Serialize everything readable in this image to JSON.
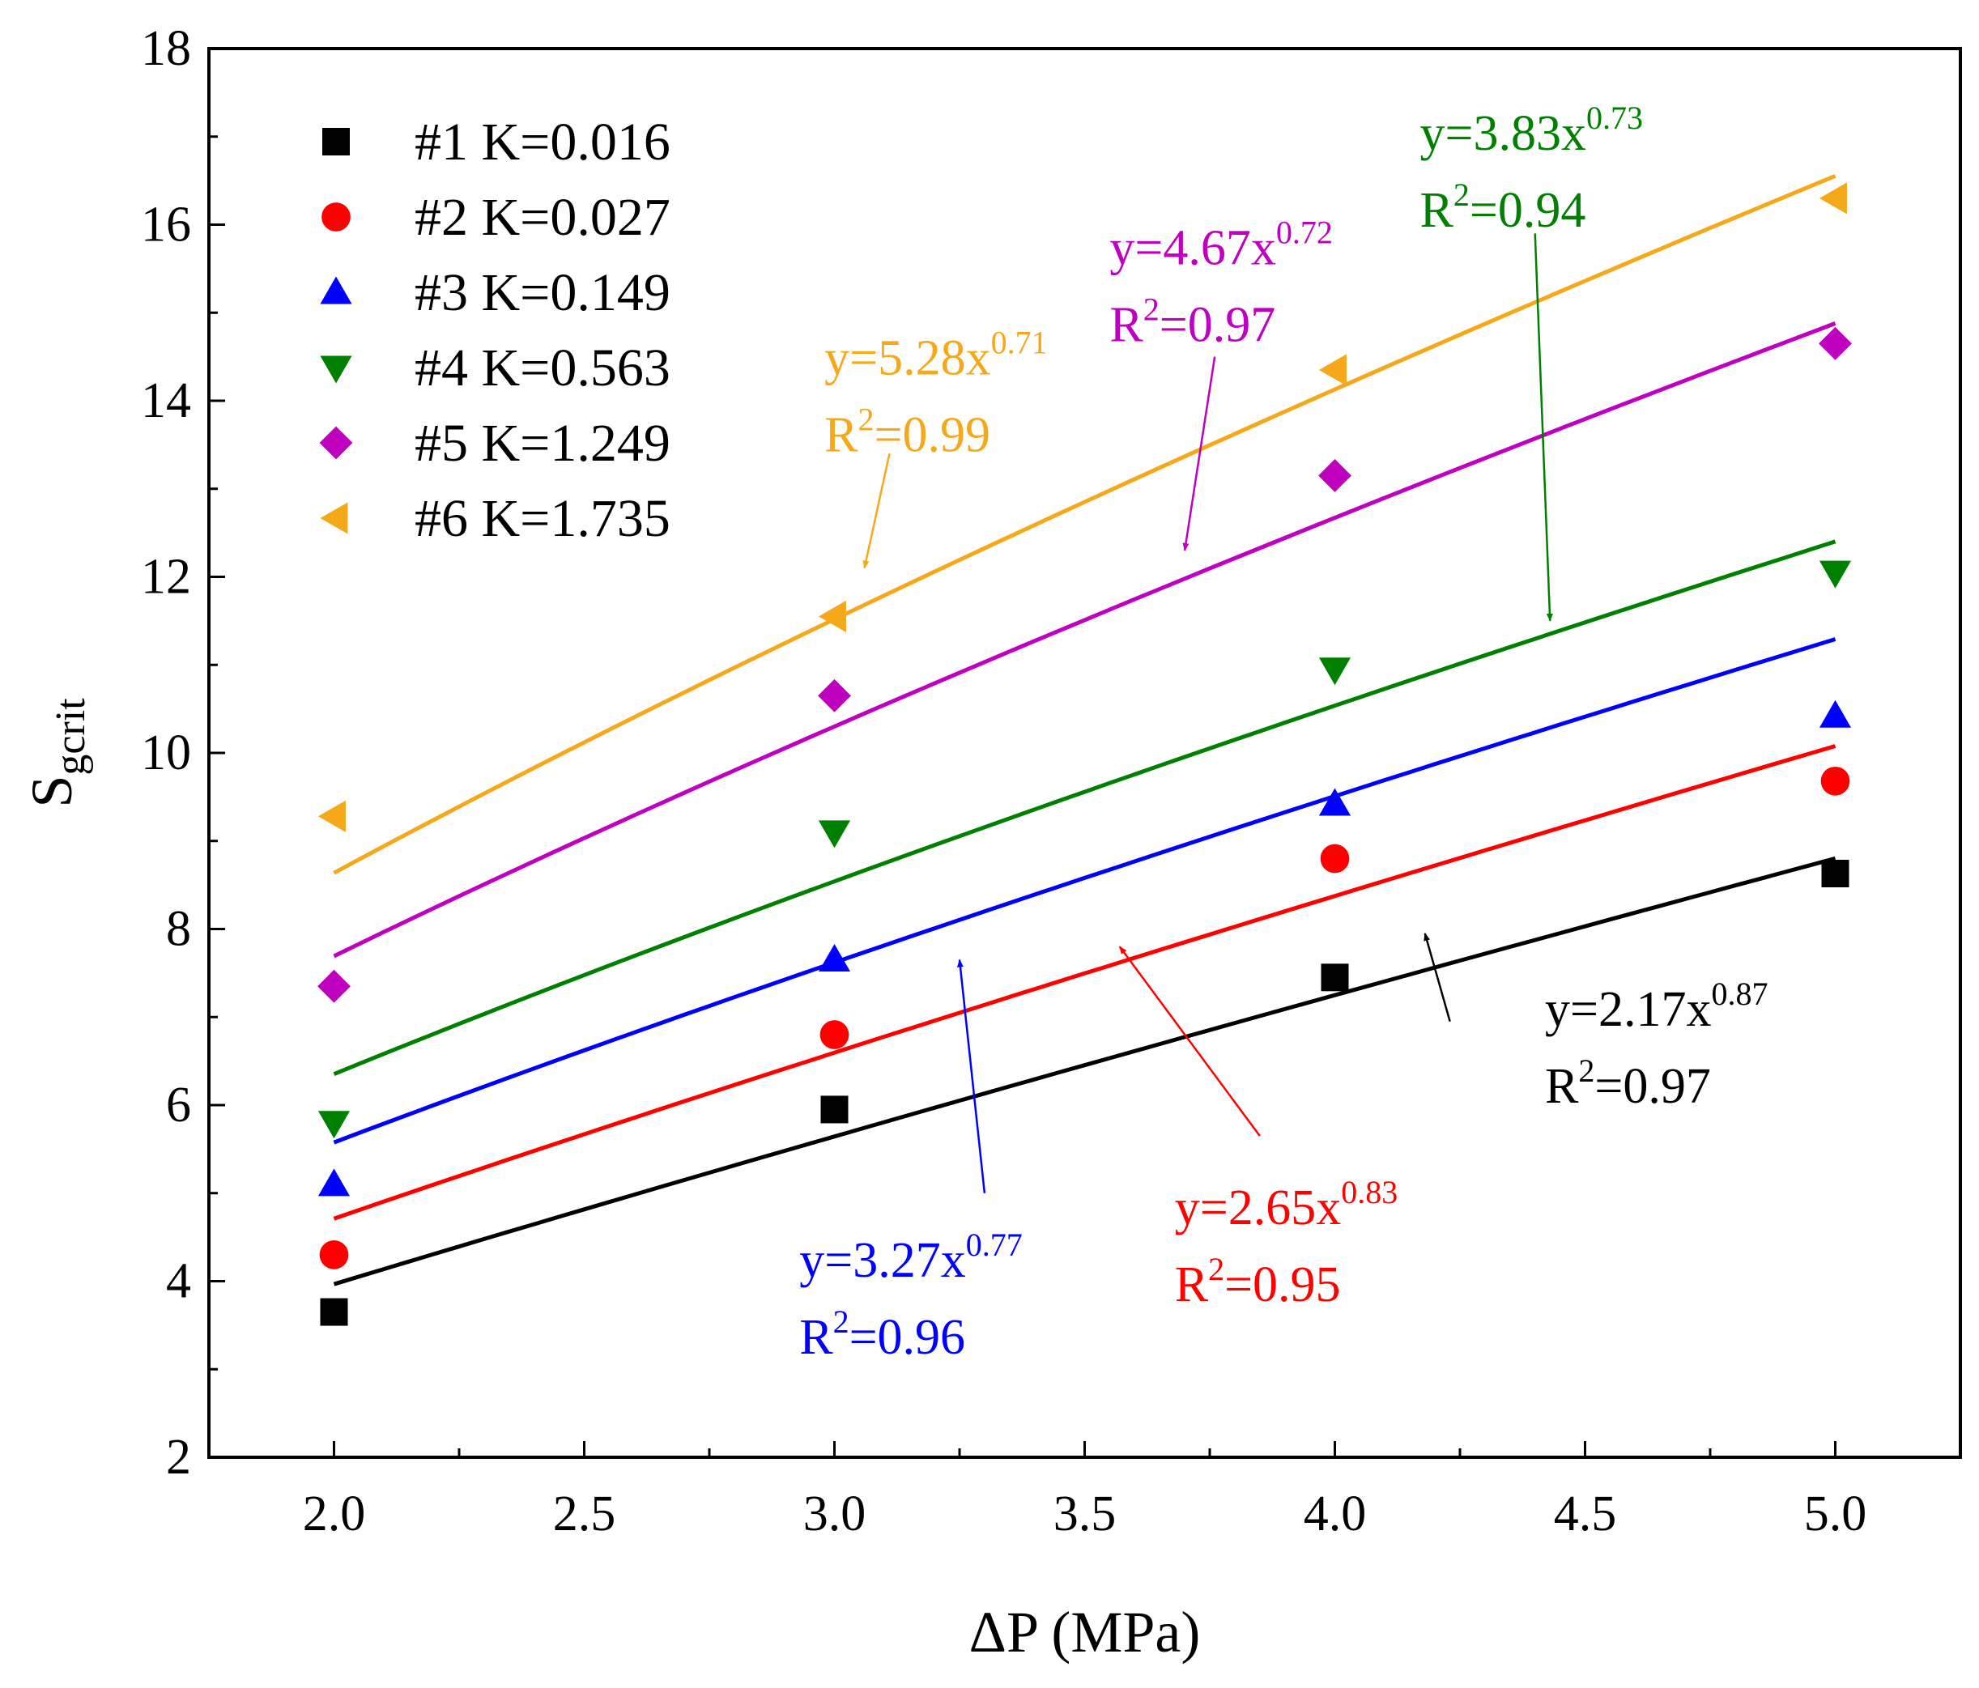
{
  "chart_data": {
    "type": "scatter",
    "title": "",
    "xlabel": {
      "prefix": "ΔP",
      "unit": "(MPa)"
    },
    "ylabel": {
      "main": "S",
      "sub": "gcrit"
    },
    "xlim": [
      1.75,
      5.25
    ],
    "ylim": [
      2,
      18
    ],
    "xticks": [
      2.0,
      2.5,
      3.0,
      3.5,
      4.0,
      4.5,
      5.0
    ],
    "xtick_labels": [
      "2.0",
      "2.5",
      "3.0",
      "3.5",
      "4.0",
      "4.5",
      "5.0"
    ],
    "yticks": [
      2,
      4,
      6,
      8,
      10,
      12,
      14,
      16,
      18
    ],
    "ytick_labels": [
      "2",
      "4",
      "6",
      "8",
      "10",
      "12",
      "14",
      "16",
      "18"
    ],
    "legend_position": "top-left",
    "series": [
      {
        "name": "#1 K=0.016",
        "color": "#000000",
        "marker": "square",
        "x": [
          2,
          3,
          4,
          5
        ],
        "y": [
          3.65,
          5.95,
          7.45,
          8.63
        ],
        "fit": {
          "a": 2.17,
          "b": 0.87,
          "x_range": [
            2.0,
            5.0
          ]
        },
        "annotation": {
          "eq_prefix": "y=2.17x",
          "eq_exp": "0.87",
          "r_prefix": "R",
          "r_exp": "2",
          "r_suffix": "=0.97",
          "text_at": [
            4.42,
            6.9
          ],
          "arrow_from": [
            4.23,
            6.95
          ],
          "arrow_to": [
            4.18,
            7.95
          ]
        }
      },
      {
        "name": "#2 K=0.027",
        "color": "#ff0000",
        "marker": "circle",
        "x": [
          2,
          3,
          4,
          5
        ],
        "y": [
          4.3,
          6.8,
          8.8,
          9.68
        ],
        "fit": {
          "a": 2.65,
          "b": 0.83,
          "x_range": [
            2.0,
            5.0
          ]
        },
        "annotation": {
          "eq_prefix": "y=2.65x",
          "eq_exp": "0.83",
          "r_prefix": "R",
          "r_exp": "2",
          "r_suffix": "=0.95",
          "text_at": [
            3.68,
            4.65
          ],
          "arrow_from": [
            3.85,
            5.65
          ],
          "arrow_to": [
            3.57,
            7.8
          ]
        }
      },
      {
        "name": "#3 K=0.149",
        "color": "#0000ff",
        "marker": "triangle-up",
        "x": [
          2,
          3,
          4,
          5
        ],
        "y": [
          5.1,
          7.65,
          9.42,
          10.42
        ],
        "fit": {
          "a": 3.27,
          "b": 0.77,
          "x_range": [
            2.0,
            5.0
          ]
        },
        "annotation": {
          "eq_prefix": "y=3.27x",
          "eq_exp": "0.77",
          "r_prefix": "R",
          "r_exp": "2",
          "r_suffix": "=0.96",
          "text_at": [
            2.93,
            4.05
          ],
          "arrow_from": [
            3.3,
            5.0
          ],
          "arrow_to": [
            3.25,
            7.65
          ]
        }
      },
      {
        "name": "#4 K=0.563",
        "color": "#008000",
        "marker": "triangle-down",
        "x": [
          2,
          3,
          4,
          5
        ],
        "y": [
          5.8,
          9.1,
          10.95,
          12.05
        ],
        "fit": {
          "a": 3.83,
          "b": 0.73,
          "x_range": [
            2.0,
            5.0
          ]
        },
        "annotation": {
          "eq_prefix": "y=3.83x",
          "eq_exp": "0.73",
          "r_prefix": "R",
          "r_exp": "2",
          "r_suffix": "=0.94",
          "text_at": [
            4.17,
            16.85
          ],
          "arrow_from": [
            4.4,
            15.9
          ],
          "arrow_to": [
            4.43,
            11.5
          ]
        }
      },
      {
        "name": "#5 K=1.249",
        "color": "#bf00bf",
        "marker": "diamond",
        "x": [
          2,
          3,
          4,
          5
        ],
        "y": [
          7.35,
          10.65,
          13.15,
          14.65
        ],
        "fit": {
          "a": 4.67,
          "b": 0.72,
          "x_range": [
            2.0,
            5.0
          ]
        },
        "annotation": {
          "eq_prefix": "y=4.67x",
          "eq_exp": "0.72",
          "r_prefix": "R",
          "r_exp": "2",
          "r_suffix": "=0.97",
          "text_at": [
            3.55,
            15.55
          ],
          "arrow_from": [
            3.76,
            14.5
          ],
          "arrow_to": [
            3.7,
            12.3
          ]
        }
      },
      {
        "name": "#6 K=1.735",
        "color": "#f5a91a",
        "marker": "triangle-left",
        "x": [
          2,
          3,
          4,
          5
        ],
        "y": [
          9.28,
          11.55,
          14.35,
          16.3
        ],
        "fit": {
          "a": 5.28,
          "b": 0.71,
          "x_range": [
            2.0,
            5.0
          ]
        },
        "annotation": {
          "eq_prefix": "y=5.28x",
          "eq_exp": "0.71",
          "r_prefix": "R",
          "r_exp": "2",
          "r_suffix": "=0.99",
          "text_at": [
            2.98,
            14.3
          ],
          "arrow_from": [
            3.11,
            13.4
          ],
          "arrow_to": [
            3.06,
            12.1
          ]
        }
      }
    ]
  }
}
